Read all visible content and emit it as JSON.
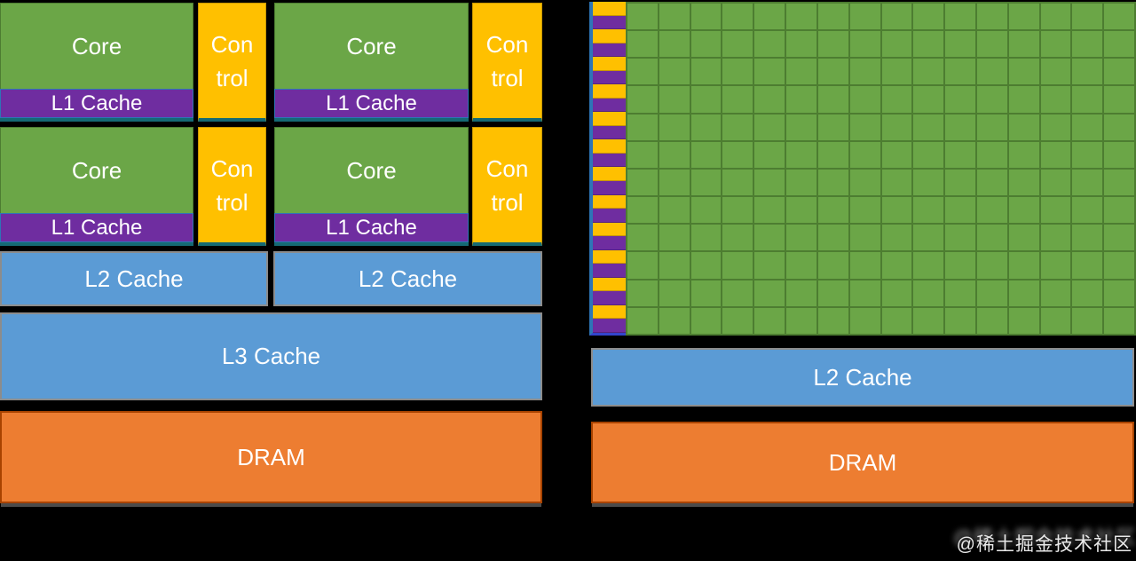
{
  "labels": {
    "core": "Core",
    "control": "Control",
    "control_lines": [
      "Con",
      "trol"
    ],
    "l1_cache": "L1 Cache",
    "l2_cache": "L2 Cache",
    "l3_cache": "L3 Cache",
    "dram": "DRAM"
  },
  "cpu": {
    "core_count": 4,
    "control_count": 4,
    "l1_count": 4,
    "l2_count": 2,
    "l3_count": 1,
    "dram_count": 1
  },
  "gpu": {
    "grid_rows": 12,
    "grid_cols": 16,
    "stripe_pairs": 12,
    "l2_count": 1,
    "dram_count": 1
  },
  "watermark": {
    "text": "@稀土掘金技术社区"
  },
  "colors": {
    "background": "#000000",
    "core_green": "#6ba647",
    "green_dark": "#4d7d31",
    "purple": "#6f2da0",
    "purple_edge": "#2e75b6",
    "yellow": "#ffc000",
    "yellow_dark": "#c99700",
    "blue": "#5b9bd5",
    "gray_border": "#8c8c8c",
    "orange": "#ed7d31",
    "orange_dark": "#a84300",
    "teal": "#156a74",
    "text_white": "#ffffff"
  }
}
